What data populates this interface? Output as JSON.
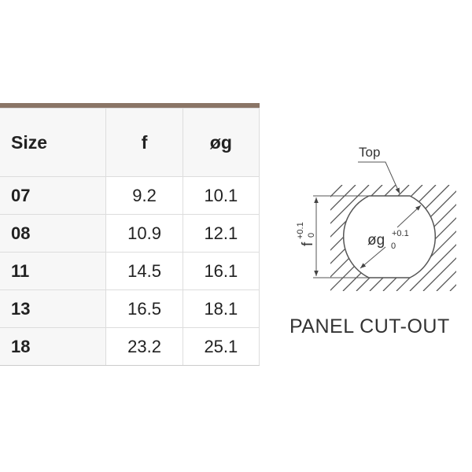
{
  "table": {
    "headers": [
      "Size",
      "f",
      "øg"
    ],
    "rows": [
      [
        "07",
        "9.2",
        "10.1"
      ],
      [
        "08",
        "10.9",
        "12.1"
      ],
      [
        "11",
        "14.5",
        "16.1"
      ],
      [
        "13",
        "16.5",
        "18.1"
      ],
      [
        "18",
        "23.2",
        "25.1"
      ]
    ]
  },
  "diagram": {
    "top_label": "Top",
    "f_label": "f",
    "g_label": "øg",
    "tol_upper": "+0.1",
    "tol_lower": "0",
    "caption": "PANEL CUT-OUT"
  },
  "colors": {
    "header_bar": "#8a7566"
  }
}
